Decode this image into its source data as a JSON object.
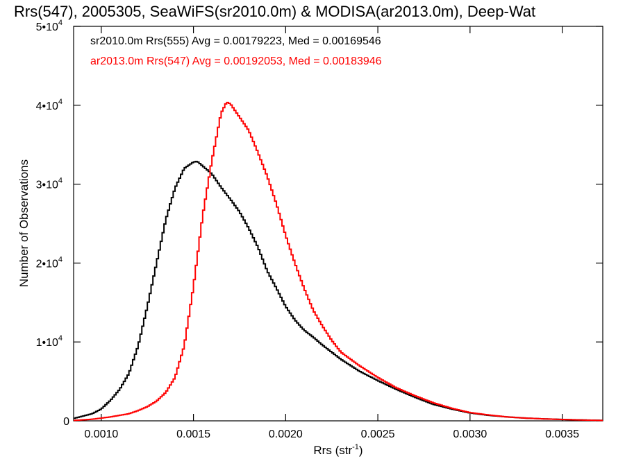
{
  "chart_data": {
    "type": "line",
    "title": "Rrs(547), 2005305, SeaWiFS(sr2010.0m) & MODISA(ar2013.0m), Deep-Wat",
    "xlabel": "Rrs (str",
    "xlabel_superscript": "-1",
    "xlabel_close": ")",
    "ylabel": "Number of Observations",
    "xlim": [
      0.00085,
      0.00372
    ],
    "ylim": [
      0,
      50000
    ],
    "x_ticks": [
      {
        "value": 0.001,
        "label": "0.0010"
      },
      {
        "value": 0.0015,
        "label": "0.0015"
      },
      {
        "value": 0.002,
        "label": "0.0020"
      },
      {
        "value": 0.0025,
        "label": "0.0025"
      },
      {
        "value": 0.003,
        "label": "0.0030"
      },
      {
        "value": 0.0035,
        "label": "0.0035"
      }
    ],
    "y_ticks": [
      {
        "value": 0,
        "label": "0",
        "exp": ""
      },
      {
        "value": 10000,
        "label": "1•10",
        "exp": "4"
      },
      {
        "value": 20000,
        "label": "2•10",
        "exp": "4"
      },
      {
        "value": 30000,
        "label": "3•10",
        "exp": "4"
      },
      {
        "value": 40000,
        "label": "4•10",
        "exp": "4"
      },
      {
        "value": 50000,
        "label": "5•10",
        "exp": "4"
      }
    ],
    "grid": false,
    "legend": {
      "placement": "top-left",
      "entries": [
        {
          "text": "sr2010.0m Rrs(555) Avg = 0.00179223, Med = 0.00169546",
          "color": "#000000"
        },
        {
          "text": "ar2013.0m Rrs(547) Avg = 0.00192053, Med = 0.00183946",
          "color": "#ff0000"
        }
      ]
    },
    "series": [
      {
        "color": "#000000",
        "points": [
          [
            0.00085,
            300
          ],
          [
            0.00095,
            900
          ],
          [
            0.001,
            1500
          ],
          [
            0.00105,
            2600
          ],
          [
            0.0011,
            4000
          ],
          [
            0.00115,
            6000
          ],
          [
            0.0012,
            9500
          ],
          [
            0.00125,
            14500
          ],
          [
            0.0013,
            20000
          ],
          [
            0.00135,
            25500
          ],
          [
            0.0014,
            29500
          ],
          [
            0.00145,
            32000
          ],
          [
            0.0015,
            32800
          ],
          [
            0.00152,
            32900
          ],
          [
            0.00155,
            32300
          ],
          [
            0.0016,
            31300
          ],
          [
            0.00165,
            29600
          ],
          [
            0.0017,
            28100
          ],
          [
            0.00175,
            26500
          ],
          [
            0.0018,
            24400
          ],
          [
            0.00185,
            22000
          ],
          [
            0.0019,
            19000
          ],
          [
            0.00195,
            16800
          ],
          [
            0.002,
            14500
          ],
          [
            0.00205,
            12800
          ],
          [
            0.0021,
            11500
          ],
          [
            0.00215,
            10600
          ],
          [
            0.0022,
            9600
          ],
          [
            0.0023,
            7800
          ],
          [
            0.0024,
            6300
          ],
          [
            0.0025,
            5100
          ],
          [
            0.0026,
            4000
          ],
          [
            0.0027,
            3000
          ],
          [
            0.0028,
            2100
          ],
          [
            0.0029,
            1500
          ],
          [
            0.003,
            1000
          ],
          [
            0.0031,
            700
          ],
          [
            0.0032,
            500
          ],
          [
            0.0033,
            350
          ],
          [
            0.0034,
            250
          ],
          [
            0.0035,
            180
          ],
          [
            0.0036,
            120
          ],
          [
            0.00372,
            60
          ]
        ]
      },
      {
        "color": "#ff0000",
        "points": [
          [
            0.00085,
            50
          ],
          [
            0.00095,
            200
          ],
          [
            0.00105,
            500
          ],
          [
            0.0011,
            700
          ],
          [
            0.00115,
            900
          ],
          [
            0.0012,
            1300
          ],
          [
            0.00125,
            1800
          ],
          [
            0.0013,
            2500
          ],
          [
            0.00135,
            3600
          ],
          [
            0.0014,
            5500
          ],
          [
            0.00145,
            9500
          ],
          [
            0.0015,
            17000
          ],
          [
            0.00155,
            26000
          ],
          [
            0.0016,
            33000
          ],
          [
            0.00165,
            39000
          ],
          [
            0.00168,
            40400
          ],
          [
            0.0017,
            40200
          ],
          [
            0.00175,
            38500
          ],
          [
            0.0018,
            36800
          ],
          [
            0.00185,
            34000
          ],
          [
            0.0019,
            31000
          ],
          [
            0.00195,
            27500
          ],
          [
            0.002,
            23500
          ],
          [
            0.00205,
            20000
          ],
          [
            0.0021,
            16800
          ],
          [
            0.00215,
            14000
          ],
          [
            0.0022,
            12000
          ],
          [
            0.00225,
            10200
          ],
          [
            0.0023,
            8700
          ],
          [
            0.0024,
            7000
          ],
          [
            0.0025,
            5500
          ],
          [
            0.0026,
            4200
          ],
          [
            0.0027,
            3200
          ],
          [
            0.0028,
            2300
          ],
          [
            0.0029,
            1600
          ],
          [
            0.003,
            1050
          ],
          [
            0.0031,
            750
          ],
          [
            0.0032,
            500
          ],
          [
            0.0033,
            350
          ],
          [
            0.0034,
            250
          ],
          [
            0.0035,
            170
          ],
          [
            0.0036,
            110
          ],
          [
            0.00372,
            50
          ]
        ]
      }
    ]
  }
}
